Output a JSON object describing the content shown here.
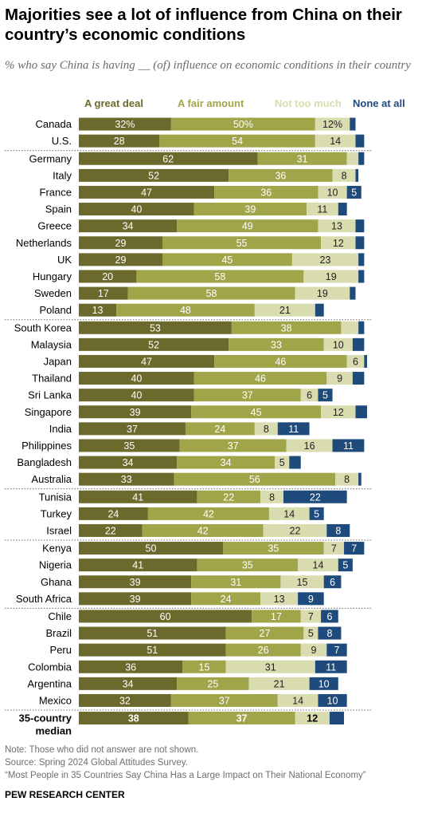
{
  "title": "Majorities see a lot of influence from China on their country’s economic conditions",
  "subtitle": "% who say China is having __ (of) influence on economic conditions in their country",
  "colors": {
    "great_deal": "#6b6a2c",
    "fair_amount": "#a0a54a",
    "not_too_much": "#d8dcae",
    "none_at_all": "#1f4a7c",
    "separator": "#666666"
  },
  "chart_data": {
    "type": "bar",
    "orientation": "horizontal",
    "stacked": true,
    "unit": "%",
    "series": [
      {
        "name": "A great deal"
      },
      {
        "name": "A fair amount"
      },
      {
        "name": "Not too much"
      },
      {
        "name": "None at all"
      }
    ],
    "groups": [
      {
        "rows": [
          {
            "country": "Canada",
            "values": [
              32,
              50,
              12,
              2
            ],
            "labels": [
              "32%",
              "50%",
              "12%",
              ""
            ]
          },
          {
            "country": "U.S.",
            "values": [
              28,
              54,
              14,
              3
            ],
            "labels": [
              "28",
              "54",
              "14",
              ""
            ]
          }
        ]
      },
      {
        "rows": [
          {
            "country": "Germany",
            "values": [
              62,
              31,
              4,
              2
            ],
            "labels": [
              "62",
              "31",
              "",
              ""
            ]
          },
          {
            "country": "Italy",
            "values": [
              52,
              36,
              8,
              1
            ],
            "labels": [
              "52",
              "36",
              "8",
              ""
            ]
          },
          {
            "country": "France",
            "values": [
              47,
              36,
              10,
              5
            ],
            "labels": [
              "47",
              "36",
              "10",
              "5"
            ]
          },
          {
            "country": "Spain",
            "values": [
              40,
              39,
              11,
              3
            ],
            "labels": [
              "40",
              "39",
              "11",
              ""
            ]
          },
          {
            "country": "Greece",
            "values": [
              34,
              49,
              13,
              3
            ],
            "labels": [
              "34",
              "49",
              "13",
              ""
            ]
          },
          {
            "country": "Netherlands",
            "values": [
              29,
              55,
              12,
              3
            ],
            "labels": [
              "29",
              "55",
              "12",
              ""
            ]
          },
          {
            "country": "UK",
            "values": [
              29,
              45,
              23,
              2
            ],
            "labels": [
              "29",
              "45",
              "23",
              ""
            ]
          },
          {
            "country": "Hungary",
            "values": [
              20,
              58,
              19,
              2
            ],
            "labels": [
              "20",
              "58",
              "19",
              ""
            ]
          },
          {
            "country": "Sweden",
            "values": [
              17,
              58,
              19,
              2
            ],
            "labels": [
              "17",
              "58",
              "19",
              ""
            ]
          },
          {
            "country": "Poland",
            "values": [
              13,
              48,
              21,
              3
            ],
            "labels": [
              "13",
              "48",
              "21",
              ""
            ]
          }
        ]
      },
      {
        "rows": [
          {
            "country": "South Korea",
            "values": [
              53,
              38,
              6,
              2
            ],
            "labels": [
              "53",
              "38",
              "",
              ""
            ]
          },
          {
            "country": "Malaysia",
            "values": [
              52,
              33,
              10,
              4
            ],
            "labels": [
              "52",
              "33",
              "10",
              ""
            ]
          },
          {
            "country": "Japan",
            "values": [
              47,
              46,
              6,
              1
            ],
            "labels": [
              "47",
              "46",
              "6",
              ""
            ]
          },
          {
            "country": "Thailand",
            "values": [
              40,
              46,
              9,
              4
            ],
            "labels": [
              "40",
              "46",
              "9",
              ""
            ]
          },
          {
            "country": "Sri Lanka",
            "values": [
              40,
              37,
              6,
              5
            ],
            "labels": [
              "40",
              "37",
              "6",
              "5"
            ]
          },
          {
            "country": "Singapore",
            "values": [
              39,
              45,
              12,
              4
            ],
            "labels": [
              "39",
              "45",
              "12",
              ""
            ]
          },
          {
            "country": "India",
            "values": [
              37,
              24,
              8,
              11
            ],
            "labels": [
              "37",
              "24",
              "8",
              "11"
            ]
          },
          {
            "country": "Philippines",
            "values": [
              35,
              37,
              16,
              11
            ],
            "labels": [
              "35",
              "37",
              "16",
              "11"
            ]
          },
          {
            "country": "Bangladesh",
            "values": [
              34,
              34,
              5,
              4
            ],
            "labels": [
              "34",
              "34",
              "5",
              ""
            ]
          },
          {
            "country": "Australia",
            "values": [
              33,
              56,
              8,
              1
            ],
            "labels": [
              "33",
              "56",
              "8",
              ""
            ]
          }
        ]
      },
      {
        "rows": [
          {
            "country": "Tunisia",
            "values": [
              41,
              22,
              8,
              22
            ],
            "labels": [
              "41",
              "22",
              "8",
              "22"
            ]
          },
          {
            "country": "Turkey",
            "values": [
              24,
              42,
              14,
              5
            ],
            "labels": [
              "24",
              "42",
              "14",
              "5"
            ]
          },
          {
            "country": "Israel",
            "values": [
              22,
              42,
              22,
              8
            ],
            "labels": [
              "22",
              "42",
              "22",
              "8"
            ]
          }
        ]
      },
      {
        "rows": [
          {
            "country": "Kenya",
            "values": [
              50,
              35,
              7,
              7
            ],
            "labels": [
              "50",
              "35",
              "7",
              "7"
            ]
          },
          {
            "country": "Nigeria",
            "values": [
              41,
              35,
              14,
              5
            ],
            "labels": [
              "41",
              "35",
              "14",
              "5"
            ]
          },
          {
            "country": "Ghana",
            "values": [
              39,
              31,
              15,
              6
            ],
            "labels": [
              "39",
              "31",
              "15",
              "6"
            ]
          },
          {
            "country": "South Africa",
            "values": [
              39,
              24,
              13,
              9
            ],
            "labels": [
              "39",
              "24",
              "13",
              "9"
            ]
          }
        ]
      },
      {
        "rows": [
          {
            "country": "Chile",
            "values": [
              60,
              17,
              7,
              6
            ],
            "labels": [
              "60",
              "17",
              "7",
              "6"
            ]
          },
          {
            "country": "Brazil",
            "values": [
              51,
              27,
              5,
              8
            ],
            "labels": [
              "51",
              "27",
              "5",
              "8"
            ]
          },
          {
            "country": "Peru",
            "values": [
              51,
              26,
              9,
              7
            ],
            "labels": [
              "51",
              "26",
              "9",
              "7"
            ]
          },
          {
            "country": "Colombia",
            "values": [
              36,
              15,
              31,
              11
            ],
            "labels": [
              "36",
              "15",
              "31",
              "11"
            ]
          },
          {
            "country": "Argentina",
            "values": [
              34,
              25,
              21,
              10
            ],
            "labels": [
              "34",
              "25",
              "21",
              "10"
            ]
          },
          {
            "country": "Mexico",
            "values": [
              32,
              37,
              14,
              10
            ],
            "labels": [
              "32",
              "37",
              "14",
              "10"
            ]
          }
        ]
      },
      {
        "median": true,
        "rows": [
          {
            "country": "35-country median",
            "values": [
              38,
              37,
              12,
              5
            ],
            "labels": [
              "38",
              "37",
              "12",
              ""
            ]
          }
        ]
      }
    ]
  },
  "notes": [
    "Note: Those who did not answer are not shown.",
    "Source: Spring 2024 Global Attitudes Survey.",
    "“Most People in 35 Countries Say China Has a Large Impact on Their National Economy”"
  ],
  "organization": "PEW RESEARCH CENTER"
}
